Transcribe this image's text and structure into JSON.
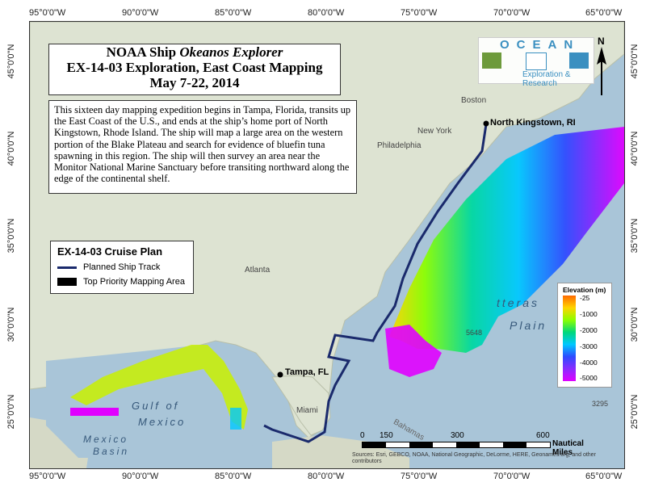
{
  "title": {
    "line1": "NOAA Ship ",
    "line1_italic": "Okeanos Explorer",
    "line2": "EX-14-03 Exploration, East Coast Mapping",
    "line3": "May 7-22, 2014"
  },
  "description": "This sixteen day mapping expedition begins in Tampa, Florida, transits up the East Coast of the U.S., and ends at the ship’s home port of North Kingstown, Rhode Island. The ship will map a large area on the western portion of the Blake Plateau and search for evidence of bluefin tuna spawning in this region. The ship will then survey an area near the Monitor National Marine Sanctuary before transiting northward along the edge of the continental shelf.",
  "legend": {
    "title": "EX-14-03 Cruise Plan",
    "track_label": "Planned Ship Track",
    "area_label": "Top Priority Mapping Area"
  },
  "logo": {
    "word": "OCEAN",
    "sub": "Exploration & Research"
  },
  "graticule": {
    "top": [
      "95°0'0\"W",
      "90°0'0\"W",
      "85°0'0\"W",
      "80°0'0\"W",
      "75°0'0\"W",
      "70°0'0\"W",
      "65°0'0\"W"
    ],
    "bottom": [
      "95°0'0\"W",
      "90°0'0\"W",
      "85°0'0\"W",
      "80°0'0\"W",
      "75°0'0\"W",
      "70°0'0\"W",
      "65°0'0\"W"
    ],
    "left": [
      "45°0'0\"N",
      "40°0'0\"N",
      "35°0'0\"N",
      "30°0'0\"N",
      "25°0'0\"N"
    ],
    "right": [
      "45°0'0\"N",
      "40°0'0\"N",
      "35°0'0\"N",
      "30°0'0\"N",
      "25°0'0\"N"
    ]
  },
  "places": {
    "north_kingstown": "North Kingstown, RI",
    "tampa": "Tampa, FL",
    "boston": "Boston",
    "new_york": "New York",
    "philadelphia": "Philadelphia",
    "atlanta": "Atlanta",
    "miami": "Miami",
    "gulf1": "Gulf of",
    "gulf2": "Mexico",
    "mexico_basin1": "Mexico",
    "mexico_basin2": "Basin",
    "hatteras": "tteras",
    "plain": "Plain",
    "depth1": "5648",
    "depth2": "3295",
    "bahamas": "Bahamas"
  },
  "elevation": {
    "title": "Elevation (m)",
    "ticks": [
      "-25",
      "-1000",
      "-2000",
      "-3000",
      "-4000",
      "-5000"
    ]
  },
  "scale": {
    "ticks": [
      "0",
      "150",
      "300",
      "600"
    ],
    "unit": "Nautical Miles"
  },
  "sources": "Sources: Esri, GEBCO, NOAA, National Geographic, DeLorme, HERE, Geonames.org, and other contributors",
  "north": "N",
  "colors": {
    "track": "#1a2a6c",
    "ocean": "#a9c5d8",
    "land": "#dde3d2"
  }
}
